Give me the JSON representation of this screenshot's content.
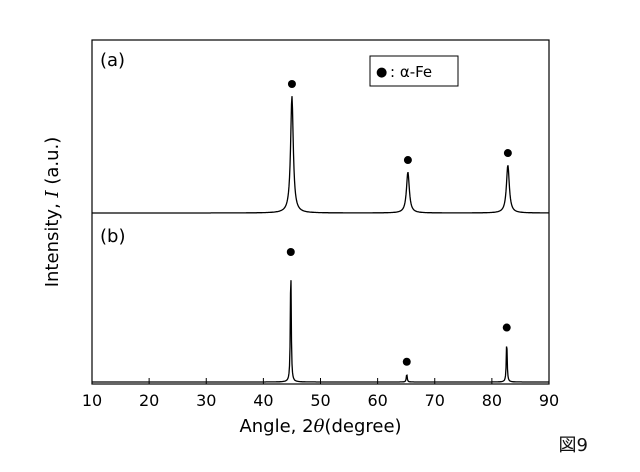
{
  "figure": {
    "label": "図9"
  },
  "chart_data": {
    "type": "line",
    "xlabel": "Angle, 2θ (degree)",
    "xlabel_parts": {
      "prefix": "Angle, 2",
      "theta": "θ",
      "suffix": "(degree)"
    },
    "ylabel": "Intensity, I (a.u.)",
    "ylabel_parts": {
      "prefix": "Intensity, ",
      "italic": "I",
      "suffix": " (a.u.)"
    },
    "xlim": [
      10,
      90
    ],
    "x_ticks": [
      10,
      20,
      30,
      40,
      50,
      60,
      70,
      80,
      90
    ],
    "y_ticks_shown": false,
    "legend": {
      "marker": "●",
      "text": ": α-Fe",
      "placement": "top-right of panel (a)"
    },
    "series": [
      {
        "panel_label": "(a)",
        "baseline": 0,
        "peaks": [
          {
            "x": 45.0,
            "height": 1.0,
            "width": 0.28,
            "marker": "α-Fe"
          },
          {
            "x": 65.3,
            "height": 0.35,
            "width": 0.3,
            "marker": "α-Fe"
          },
          {
            "x": 82.8,
            "height": 0.41,
            "width": 0.3,
            "marker": "α-Fe"
          }
        ]
      },
      {
        "panel_label": "(b)",
        "baseline": 0,
        "peaks": [
          {
            "x": 44.8,
            "height": 1.0,
            "width": 0.09,
            "marker": "α-Fe"
          },
          {
            "x": 65.1,
            "height": 0.07,
            "width": 0.09,
            "marker": "α-Fe"
          },
          {
            "x": 82.6,
            "height": 0.36,
            "width": 0.09,
            "marker": "α-Fe"
          }
        ]
      }
    ]
  }
}
